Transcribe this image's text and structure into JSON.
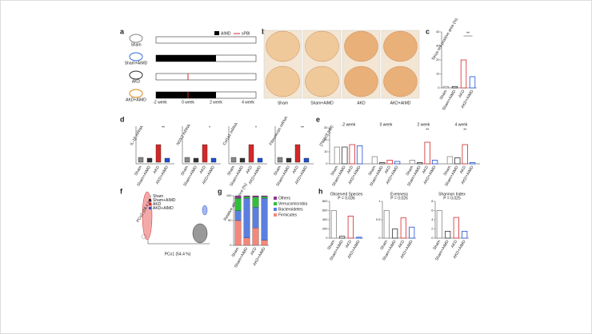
{
  "figure": {
    "panel_labels": [
      "a",
      "b",
      "c",
      "d",
      "e",
      "f",
      "g",
      "h"
    ],
    "a": {
      "legend": [
        "AIMD",
        "sPBI"
      ],
      "groups": [
        "Sham",
        "Sham+AIMD",
        "AKD",
        "AKD+AIMD"
      ],
      "timepoints": [
        "-2 week",
        "0 week",
        "2 week",
        "4 week"
      ]
    },
    "b": {
      "captions": [
        "Sham",
        "Sham+AIMD",
        "AKD",
        "AKD+AIMD"
      ]
    },
    "d": {
      "titles": [
        "IL-1β mRNA",
        "NOX2 mRNA",
        "Col1a1 mRNA",
        "Fibronectin mRNA"
      ],
      "groups": [
        "Sham",
        "Sham+AIMD",
        "AKD",
        "AKD+AIMD"
      ],
      "annotations": [
        "**",
        "*",
        "*",
        "**"
      ]
    },
    "f": {
      "legend": [
        "Sham",
        "Sham+AIMD",
        "AKD",
        "AKD+AIMD"
      ],
      "xlabel": "PCo1 (54.4 %)",
      "ylabel": "PCo2 (18.4 %)"
    }
  },
  "chart_data": [
    {
      "type": "bar",
      "ylabel": "Sirius red positive area (%)",
      "categories": [
        "Sham",
        "Sham+AIMD",
        "AKD",
        "AKD+AIMD"
      ],
      "values": [
        1,
        1,
        20,
        8
      ],
      "colors": [
        "#888888",
        "#333333",
        "#d62728",
        "#1f4fd1"
      ],
      "ylim": [
        0,
        40
      ],
      "yticks": [
        0,
        10,
        20,
        30,
        40
      ],
      "annotation": "**"
    },
    {
      "type": "grouped_bar",
      "ylabel": "[TMAO] (nM)",
      "categories": [
        "-2 week",
        "0 week",
        "2 week",
        "4 week"
      ],
      "series": [
        {
          "name": "Sham",
          "color": "#888888",
          "values": [
            14,
            6,
            3,
            6
          ]
        },
        {
          "name": "Sham+AIMD",
          "color": "#333333",
          "values": [
            14,
            1,
            1,
            5
          ]
        },
        {
          "name": "AKD",
          "color": "#d62728",
          "values": [
            16,
            3,
            18,
            16
          ]
        },
        {
          "name": "AKD+AIMD",
          "color": "#1f4fd1",
          "values": [
            15,
            2,
            3,
            1
          ]
        }
      ],
      "ylim": [
        0,
        30
      ],
      "yticks": [
        0,
        10,
        20,
        30
      ],
      "annotations": [
        "**",
        "**"
      ]
    },
    {
      "type": "stacked_bar",
      "ylabel": "Relative abundance (%)",
      "categories": [
        "Sham",
        "Sham+AIMD",
        "AKD",
        "AKD+AIMD"
      ],
      "series": [
        {
          "name": "Firmicutes",
          "color": "#f4877a",
          "values": [
            50,
            15,
            35,
            10
          ]
        },
        {
          "name": "Bacteroidetes",
          "color": "#5b7fe0",
          "values": [
            20,
            80,
            42,
            85
          ]
        },
        {
          "name": "Verrucomicrobia",
          "color": "#2fbf3a",
          "values": [
            25,
            3,
            20,
            3
          ]
        },
        {
          "name": "Others",
          "color": "#8b3a8b",
          "values": [
            5,
            2,
            3,
            2
          ]
        }
      ],
      "ylim": [
        0,
        100
      ],
      "yticks": [
        0,
        50,
        100
      ]
    },
    {
      "type": "bar",
      "title": "Observed Species",
      "subtitle": "P = 0.036",
      "categories": [
        "Sham",
        "Sham+AIMD",
        "AKD",
        "AKD+AIMD"
      ],
      "values": [
        600,
        40,
        480,
        20
      ],
      "colors": [
        "#888888",
        "#333333",
        "#d62728",
        "#1f4fd1"
      ],
      "ylim": [
        0,
        800
      ],
      "yticks": [
        0,
        200,
        400,
        600,
        800
      ]
    },
    {
      "type": "bar",
      "title": "Evenness",
      "subtitle": "P = 0.026",
      "categories": [
        "Sham",
        "Sham+AIMD",
        "AKD",
        "AKD+AIMD"
      ],
      "values": [
        0.75,
        0.25,
        0.55,
        0.3
      ],
      "colors": [
        "#888888",
        "#333333",
        "#d62728",
        "#1f4fd1"
      ],
      "ylim": [
        0,
        1
      ],
      "yticks": [
        0,
        0.5,
        1
      ]
    },
    {
      "type": "bar",
      "title": "Shannon Index",
      "subtitle": "P = 0.025",
      "categories": [
        "Sham",
        "Sham+AIMD",
        "AKD",
        "AKD+AIMD"
      ],
      "values": [
        6,
        1.5,
        4.5,
        1.5
      ],
      "colors": [
        "#888888",
        "#333333",
        "#d62728",
        "#1f4fd1"
      ],
      "ylim": [
        0,
        8
      ],
      "yticks": [
        0,
        2,
        4,
        6,
        8
      ]
    }
  ]
}
